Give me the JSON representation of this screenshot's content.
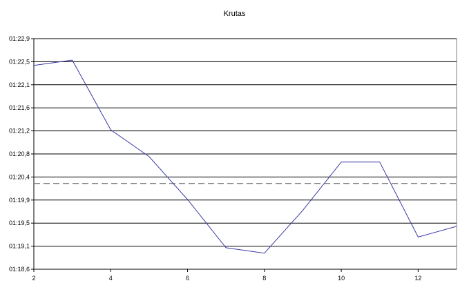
{
  "chart_data": {
    "type": "line",
    "title": "Krutas",
    "xlabel": "",
    "ylabel": "",
    "xlim": [
      2,
      13
    ],
    "x_ticks": [
      "2",
      "4",
      "6",
      "8",
      "10",
      "12"
    ],
    "y_ticks": [
      "01:18,6",
      "01:19,1",
      "01:19,5",
      "01:19,9",
      "01:20,4",
      "01:20,8",
      "01:21,2",
      "01:21,6",
      "01:22,1",
      "01:22,5",
      "01:22,9"
    ],
    "grid": true,
    "series": [
      {
        "color": "#3a3aa8",
        "x": [
          2,
          3,
          4,
          5,
          6,
          7,
          8,
          9,
          10,
          11,
          12,
          13
        ],
        "y": [
          "01:22,4",
          "01:22,5",
          "01:21,2",
          "01:20,7",
          "01:19,9",
          "01:19,0",
          "01:18,9",
          "01:19,7",
          "01:20,6",
          "01:20,6",
          "01:19,2",
          "01:19,4"
        ]
      }
    ],
    "reference_line": {
      "y": "01:20,2",
      "style": "dashed",
      "color": "#808080"
    }
  }
}
